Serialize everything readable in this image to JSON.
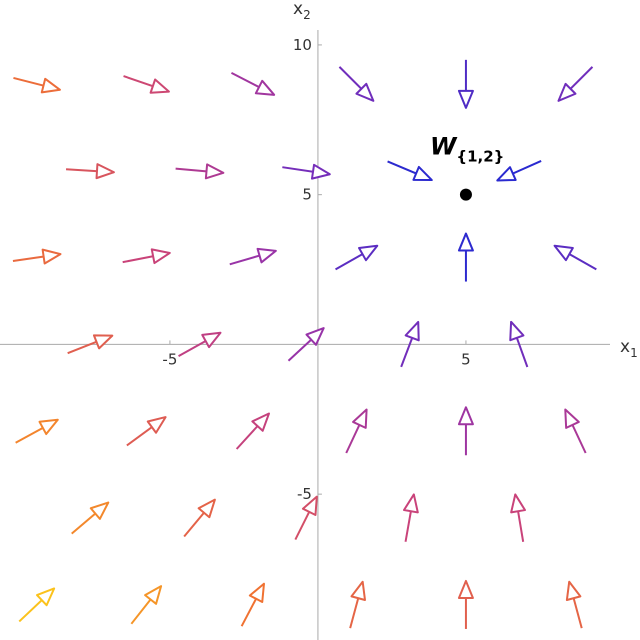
{
  "chart_data": {
    "type": "vector",
    "xlabel": "x",
    "xlabel_sub": "1",
    "ylabel": "x",
    "ylabel_sub": "2",
    "xlim": [
      -10.74,
      10.88
    ],
    "ylim": [
      -9.87,
      11.5
    ],
    "xticks": [
      -5,
      5
    ],
    "yticks": [
      -5,
      5,
      10
    ],
    "colormap": [
      "#2a2ad0",
      "#8a2fb4",
      "#c9437a",
      "#f07232",
      "#fbc21c"
    ],
    "x": [
      -9.5,
      -5.8,
      -2.2,
      1.3,
      5,
      8.7,
      -7.7,
      -4,
      -0.4,
      3.1,
      6.8,
      -9.5,
      -5.8,
      -2.2,
      1.3,
      5,
      8.7,
      -7.7,
      -4,
      -0.4,
      3.1,
      6.8,
      -9.5,
      -5.8,
      -2.2,
      1.3,
      5,
      8.7,
      -7.7,
      -4,
      -0.4,
      3.1,
      6.8,
      -9.5,
      -5.8,
      -2.2,
      1.3,
      5,
      8.7
    ],
    "y": [
      8.7,
      8.7,
      8.7,
      8.7,
      8.7,
      8.7,
      5.8,
      5.8,
      5.8,
      5.8,
      5.8,
      2.9,
      2.9,
      2.9,
      2.9,
      2.9,
      2.9,
      0,
      0,
      0,
      0,
      0,
      -2.9,
      -2.9,
      -2.9,
      -2.9,
      -2.9,
      -2.9,
      -5.8,
      -5.8,
      -5.8,
      -5.8,
      -5.8,
      -8.7,
      -8.7,
      -8.7,
      -8.7,
      -8.7,
      -8.7
    ],
    "u": [
      14.5,
      10.8,
      7.2,
      3.7,
      0,
      -3.7,
      12.7,
      9,
      5.4,
      1.9,
      -1.8,
      14.5,
      10.8,
      7.2,
      3.7,
      0,
      -3.7,
      12.7,
      9,
      5.4,
      1.9,
      -1.8,
      14.5,
      10.8,
      7.2,
      3.7,
      0,
      -3.7,
      12.7,
      9,
      5.4,
      1.9,
      -1.8,
      14.5,
      10.8,
      7.2,
      3.7,
      0,
      -3.7
    ],
    "v": [
      -3.7,
      -3.7,
      -3.7,
      -3.7,
      -3.7,
      -3.7,
      -0.8,
      -0.8,
      -0.8,
      -0.8,
      -0.8,
      2.1,
      2.1,
      2.1,
      2.1,
      2.1,
      2.1,
      5,
      5,
      5,
      5,
      5,
      7.9,
      7.9,
      7.9,
      7.9,
      7.9,
      7.9,
      10.8,
      10.8,
      10.8,
      10.8,
      10.8,
      13.7,
      13.7,
      13.7,
      13.7,
      13.7,
      13.7
    ],
    "marker": {
      "x": 5,
      "y": 5,
      "label": "W",
      "label_sub": "{1,2}"
    }
  }
}
